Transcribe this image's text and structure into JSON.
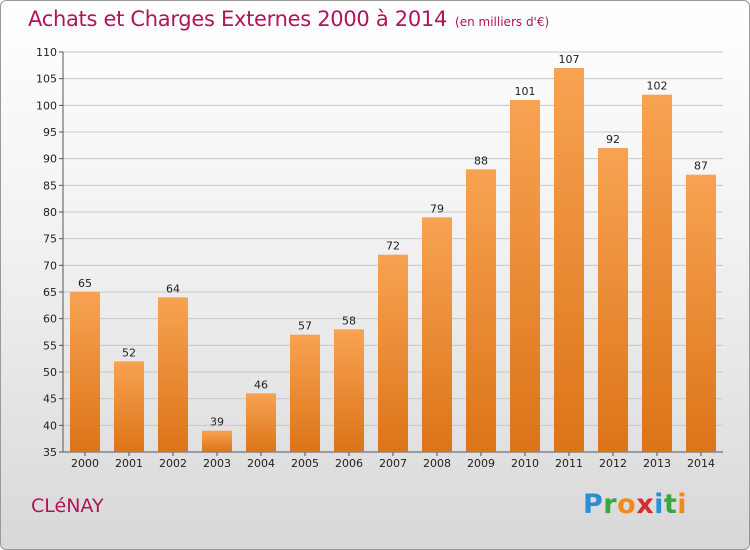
{
  "title": "Achats et Charges Externes 2000 à 2014",
  "unit_note": "(en milliers d'€)",
  "commune": "CLéNAY",
  "brand": {
    "letters": [
      "P",
      "r",
      "o",
      "x",
      "i",
      "t",
      "i"
    ]
  },
  "colors": {
    "title": "#b0145a",
    "bar_light": "#f7a352",
    "bar_dark": "#dc7418",
    "grid": "#c8c8c8"
  },
  "chart_data": {
    "type": "bar",
    "title": "Achats et Charges Externes 2000 à 2014",
    "subtitle": "(en milliers d'€)",
    "categories": [
      "2000",
      "2001",
      "2002",
      "2003",
      "2004",
      "2005",
      "2006",
      "2007",
      "2008",
      "2009",
      "2010",
      "2011",
      "2012",
      "2013",
      "2014"
    ],
    "values": [
      65,
      52,
      64,
      39,
      46,
      57,
      58,
      72,
      79,
      88,
      101,
      107,
      92,
      102,
      87
    ],
    "ylim": [
      35,
      110
    ],
    "yticks": [
      35,
      40,
      45,
      50,
      55,
      60,
      65,
      70,
      75,
      80,
      85,
      90,
      95,
      100,
      105,
      110
    ],
    "grid": true,
    "data_labels": true
  }
}
